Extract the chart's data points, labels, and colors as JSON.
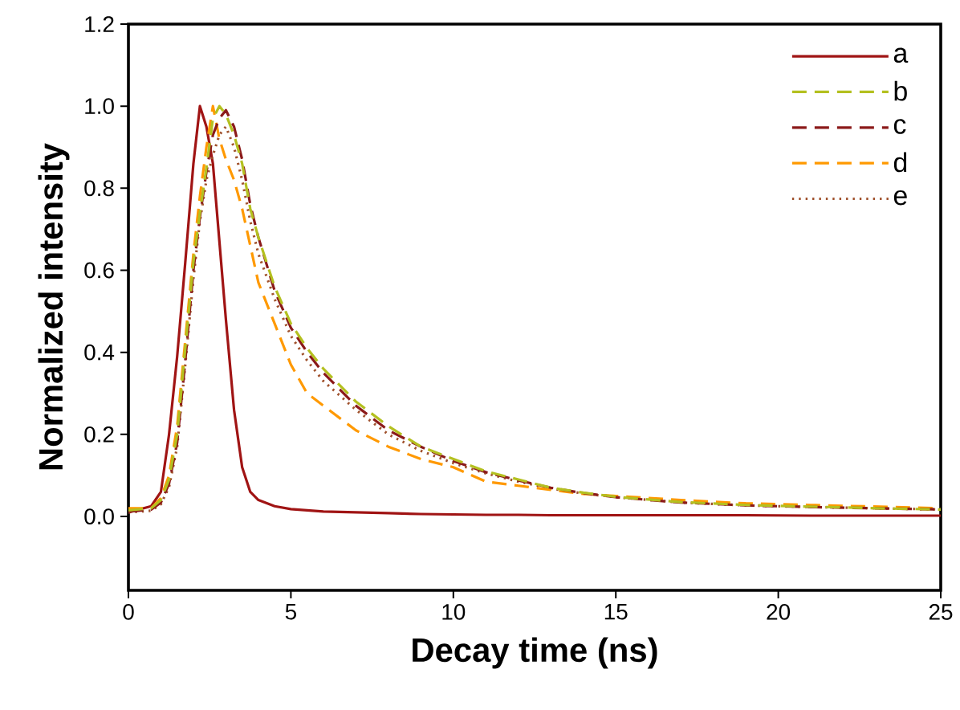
{
  "chart_data": {
    "type": "line",
    "xlabel": "Decay time (ns)",
    "ylabel": "Normalized intensity",
    "x": [
      0,
      0.7,
      1.0,
      1.25,
      1.5,
      1.75,
      2.0,
      2.2,
      2.4,
      2.6,
      2.8,
      3.0,
      3.25,
      3.5,
      3.75,
      4.0,
      4.5,
      5,
      5.5,
      6,
      7,
      8,
      9,
      10,
      11,
      12,
      13,
      14,
      15,
      17,
      19,
      21,
      23,
      25
    ],
    "series": [
      {
        "name": "a",
        "color": "#a01414",
        "line_style": "solid",
        "values": [
          0.01,
          0.025,
          0.06,
          0.2,
          0.39,
          0.62,
          0.86,
          1.0,
          0.95,
          0.86,
          0.67,
          0.48,
          0.26,
          0.12,
          0.06,
          0.04,
          0.025,
          0.018,
          0.015,
          0.012,
          0.01,
          0.008,
          0.006,
          0.005,
          0.004,
          0.004,
          0.003,
          0.003,
          0.003,
          0.003,
          0.003,
          0.002,
          0.002,
          0.002
        ]
      },
      {
        "name": "b",
        "color": "#b4c020",
        "line_style": "dashed",
        "values": [
          0.015,
          0.02,
          0.04,
          0.09,
          0.2,
          0.41,
          0.62,
          0.74,
          0.85,
          0.97,
          1.0,
          0.98,
          0.93,
          0.86,
          0.75,
          0.68,
          0.56,
          0.47,
          0.41,
          0.36,
          0.28,
          0.22,
          0.17,
          0.14,
          0.11,
          0.09,
          0.07,
          0.058,
          0.048,
          0.035,
          0.028,
          0.024,
          0.02,
          0.017
        ]
      },
      {
        "name": "c",
        "color": "#8b1a1a",
        "line_style": "dashed",
        "values": [
          0.012,
          0.017,
          0.034,
          0.08,
          0.18,
          0.38,
          0.6,
          0.73,
          0.84,
          0.93,
          0.97,
          0.99,
          0.95,
          0.87,
          0.76,
          0.68,
          0.55,
          0.46,
          0.4,
          0.35,
          0.27,
          0.21,
          0.17,
          0.135,
          0.108,
          0.088,
          0.07,
          0.057,
          0.047,
          0.034,
          0.027,
          0.023,
          0.02,
          0.017
        ]
      },
      {
        "name": "d",
        "color": "#ff9900",
        "line_style": "dashed",
        "values": [
          0.02,
          0.02,
          0.045,
          0.1,
          0.22,
          0.43,
          0.64,
          0.78,
          0.9,
          1.0,
          0.92,
          0.87,
          0.82,
          0.75,
          0.66,
          0.57,
          0.47,
          0.37,
          0.3,
          0.27,
          0.21,
          0.17,
          0.14,
          0.12,
          0.085,
          0.075,
          0.065,
          0.055,
          0.05,
          0.04,
          0.032,
          0.028,
          0.024,
          0.02
        ]
      },
      {
        "name": "e",
        "color": "#a0522d",
        "line_style": "dotted",
        "values": [
          0.01,
          0.014,
          0.03,
          0.072,
          0.17,
          0.37,
          0.58,
          0.72,
          0.82,
          0.88,
          0.93,
          0.95,
          0.9,
          0.82,
          0.72,
          0.64,
          0.53,
          0.44,
          0.38,
          0.33,
          0.26,
          0.2,
          0.16,
          0.13,
          0.105,
          0.085,
          0.068,
          0.056,
          0.047,
          0.034,
          0.027,
          0.023,
          0.02,
          0.017
        ]
      }
    ],
    "xlim": [
      0,
      25
    ],
    "ylim": [
      -0.18,
      1.2
    ],
    "xticks": [
      0,
      5,
      10,
      15,
      20,
      25
    ],
    "yticks": [
      {
        "value": 0,
        "label": "0.0"
      },
      {
        "value": 0.2,
        "label": "0.2"
      },
      {
        "value": 0.4,
        "label": "0.4"
      },
      {
        "value": 0.6,
        "label": "0.6"
      },
      {
        "value": 0.8,
        "label": "0.8"
      },
      {
        "value": 1.0,
        "label": "1.0"
      },
      {
        "value": 1.2,
        "label": "1.2"
      }
    ],
    "legend": "top right"
  }
}
